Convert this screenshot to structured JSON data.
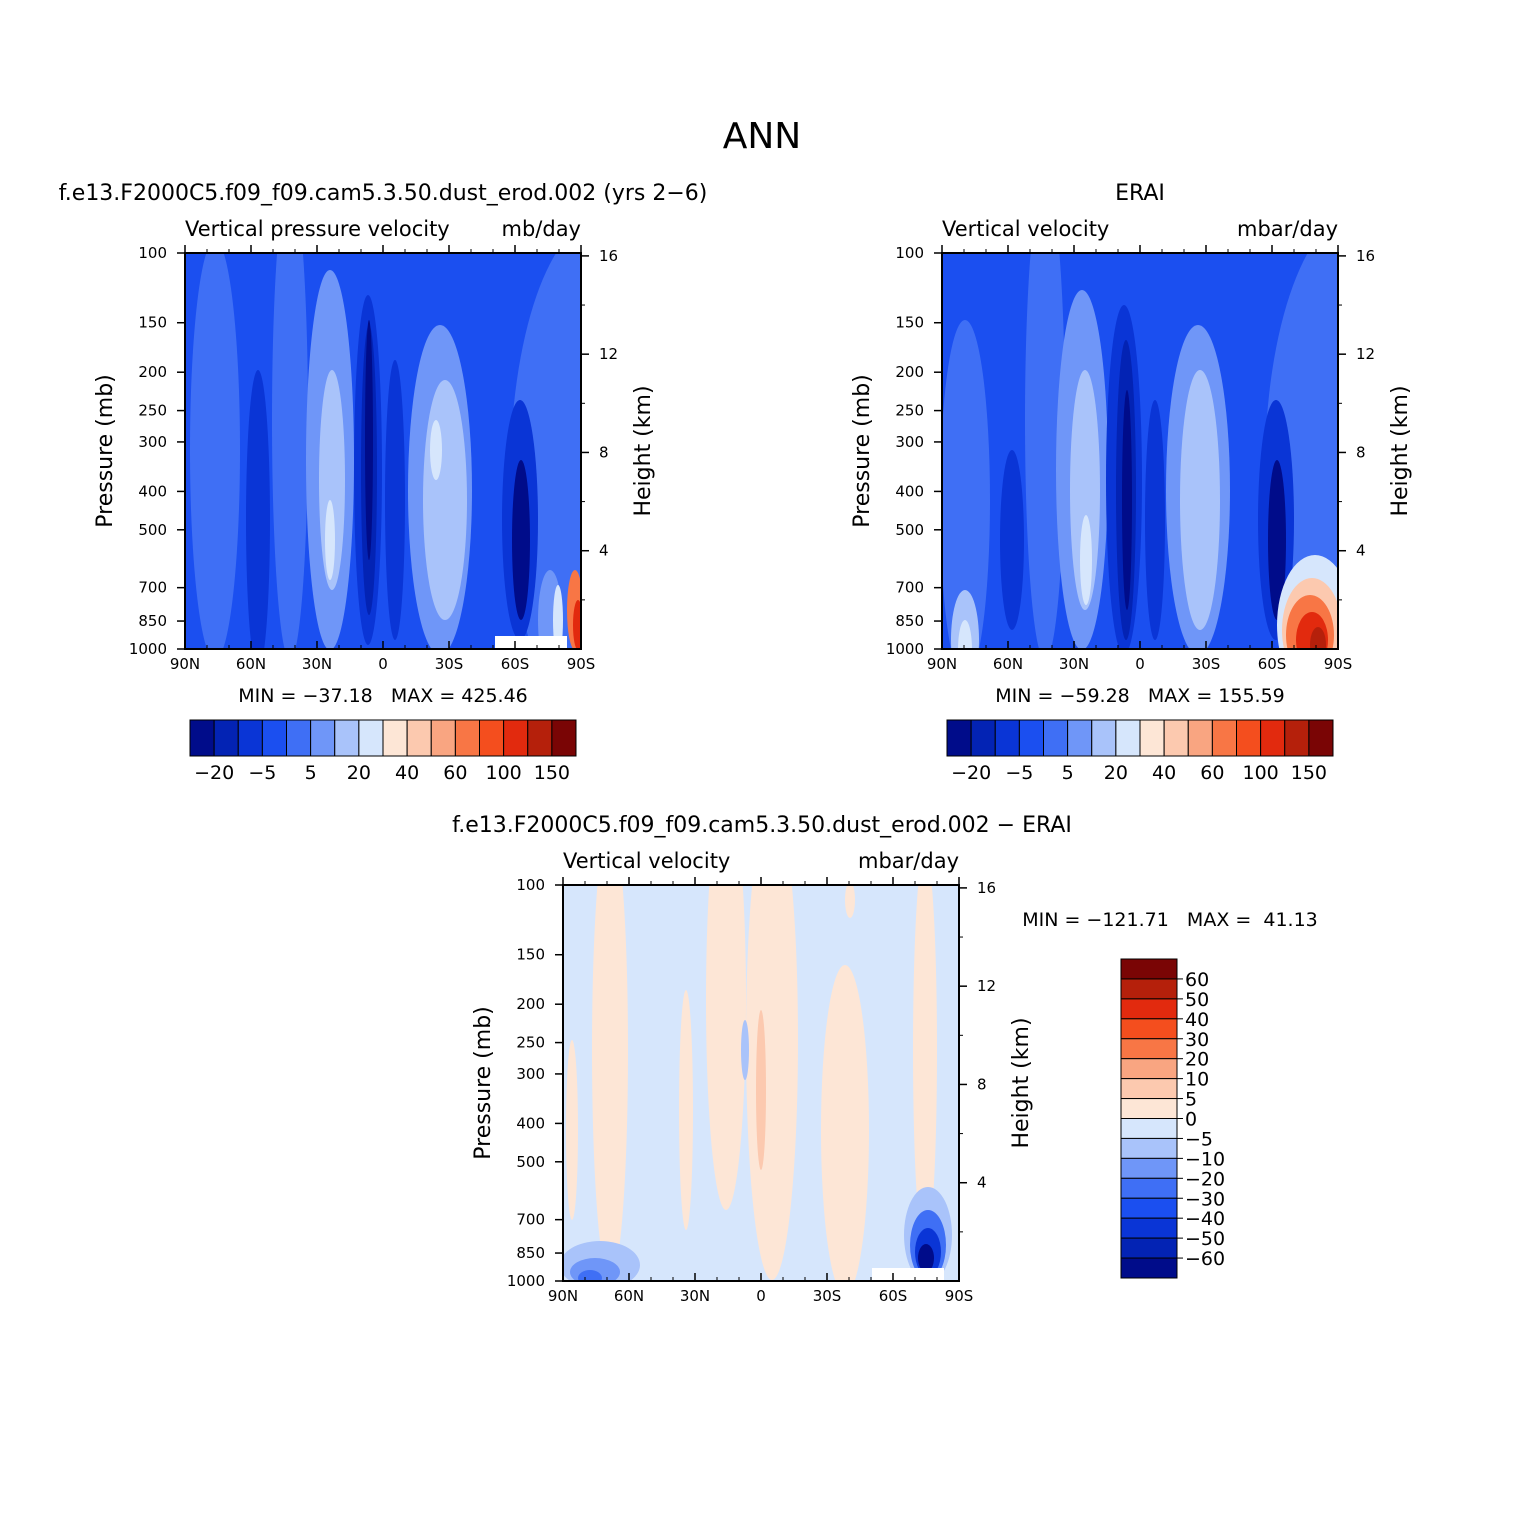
{
  "figure_title": "ANN",
  "chart_data": [
    {
      "type": "heatmap",
      "panel": "model",
      "title": "f.e13.F2000C5.f09_f09.cam5.3.50.dust_erod.002 (yrs 2−6)",
      "variable": "Vertical pressure velocity",
      "units": "mb/day",
      "xlabel": "",
      "ylabel": "Pressure (mb)",
      "y2label": "Height (km)",
      "x_ticks": [
        "90N",
        "60N",
        "30N",
        "0",
        "30S",
        "60S",
        "90S"
      ],
      "y_ticks": [
        100,
        150,
        200,
        250,
        300,
        400,
        500,
        700,
        850,
        1000
      ],
      "y2_ticks": [
        16,
        12,
        8,
        4
      ],
      "ylim": [
        1000,
        100
      ],
      "y_scale": "log",
      "stats": "MIN = −37.18   MAX = 425.46",
      "min": -37.18,
      "max": 425.46,
      "colorbar_labels": [
        "−20",
        "−5",
        "5",
        "20",
        "40",
        "60",
        "100",
        "150"
      ],
      "colorbar_placement": "bottom",
      "grid": false
    },
    {
      "type": "heatmap",
      "panel": "obs",
      "title": "ERAI",
      "variable": "Vertical velocity",
      "units": "mbar/day",
      "xlabel": "",
      "ylabel": "Pressure (mb)",
      "y2label": "Height (km)",
      "x_ticks": [
        "90N",
        "60N",
        "30N",
        "0",
        "30S",
        "60S",
        "90S"
      ],
      "y_ticks": [
        100,
        150,
        200,
        250,
        300,
        400,
        500,
        700,
        850,
        1000
      ],
      "y2_ticks": [
        16,
        12,
        8,
        4
      ],
      "ylim": [
        1000,
        100
      ],
      "y_scale": "log",
      "stats": "MIN = −59.28   MAX = 155.59",
      "min": -59.28,
      "max": 155.59,
      "colorbar_labels": [
        "−20",
        "−5",
        "5",
        "20",
        "40",
        "60",
        "100",
        "150"
      ],
      "colorbar_placement": "bottom",
      "grid": false
    },
    {
      "type": "heatmap",
      "panel": "diff",
      "title": "f.e13.F2000C5.f09_f09.cam5.3.50.dust_erod.002 − ERAI",
      "variable": "Vertical velocity",
      "units": "mbar/day",
      "xlabel": "",
      "ylabel": "Pressure (mb)",
      "y2label": "Height (km)",
      "x_ticks": [
        "90N",
        "60N",
        "30N",
        "0",
        "30S",
        "60S",
        "90S"
      ],
      "y_ticks": [
        100,
        150,
        200,
        250,
        300,
        400,
        500,
        700,
        850,
        1000
      ],
      "y2_ticks": [
        16,
        12,
        8,
        4
      ],
      "ylim": [
        1000,
        100
      ],
      "y_scale": "log",
      "stats": "MIN = −121.71   MAX =  41.13",
      "min": -121.71,
      "max": 41.13,
      "colorbar_labels": [
        "60",
        "50",
        "40",
        "30",
        "20",
        "10",
        "5",
        "0",
        "−5",
        "−10",
        "−20",
        "−30",
        "−40",
        "−50",
        "−60"
      ],
      "colorbar_placement": "right",
      "grid": false
    }
  ],
  "palettes": {
    "main": [
      "#000c8a",
      "#0323b4",
      "#0a35d6",
      "#1b4ff0",
      "#3f6ff5",
      "#6f96f8",
      "#a9c3fa",
      "#d6e6fc",
      "#fde6d6",
      "#fcc9af",
      "#f9a581",
      "#f87645",
      "#f44e1e",
      "#e22a0e",
      "#b5200b",
      "#7a0505"
    ],
    "diff": [
      "#7a0505",
      "#b5200b",
      "#e22a0e",
      "#f44e1e",
      "#f87645",
      "#f9a581",
      "#fcc9af",
      "#fde6d6",
      "#d6e6fc",
      "#a9c3fa",
      "#6f96f8",
      "#3f6ff5",
      "#1b4ff0",
      "#0a35d6",
      "#0323b4",
      "#000c8a"
    ]
  }
}
